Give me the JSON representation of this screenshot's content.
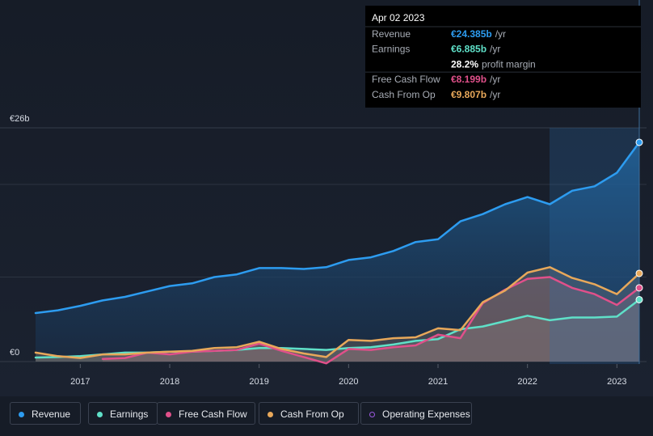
{
  "chart_data": {
    "type": "line",
    "xlim": [
      2016.5,
      2023.25
    ],
    "xticks": [
      2017,
      2018,
      2019,
      2020,
      2021,
      2022,
      2023
    ],
    "ylim": [
      0,
      26
    ],
    "yticks": [
      {
        "value": 0,
        "label": "€0"
      },
      {
        "value": 26,
        "label": "€26b"
      }
    ],
    "gridlines": [
      9.4,
      19.7
    ],
    "x": [
      2016.5,
      2016.75,
      2017.0,
      2017.25,
      2017.5,
      2017.75,
      2018.0,
      2018.25,
      2018.5,
      2018.75,
      2019.0,
      2019.25,
      2019.5,
      2019.75,
      2020.0,
      2020.25,
      2020.5,
      2020.75,
      2021.0,
      2021.25,
      2021.5,
      2021.75,
      2022.0,
      2022.25,
      2022.5,
      2022.75,
      2023.0,
      2023.25
    ],
    "series": [
      {
        "name": "Revenue",
        "color": "#2d9cf0",
        "values": [
          5.4,
          5.7,
          6.2,
          6.8,
          7.2,
          7.8,
          8.4,
          8.7,
          9.4,
          9.7,
          10.4,
          10.4,
          10.3,
          10.5,
          11.3,
          11.6,
          12.3,
          13.3,
          13.6,
          15.6,
          16.4,
          17.5,
          18.3,
          17.5,
          19.0,
          19.5,
          21.0,
          24.385
        ]
      },
      {
        "name": "Earnings",
        "color": "#5fe0c8",
        "values": [
          0.45,
          0.5,
          0.6,
          0.8,
          1.0,
          1.0,
          1.1,
          1.1,
          1.2,
          1.3,
          1.5,
          1.5,
          1.4,
          1.3,
          1.5,
          1.6,
          1.9,
          2.3,
          2.5,
          3.6,
          3.9,
          4.5,
          5.1,
          4.6,
          4.9,
          4.9,
          5.0,
          6.885
        ]
      },
      {
        "name": "Free Cash Flow",
        "color": "#e0508a",
        "values": [
          null,
          null,
          null,
          0.3,
          0.4,
          1.0,
          0.8,
          1.1,
          1.2,
          1.3,
          2.0,
          1.2,
          0.5,
          -0.2,
          1.4,
          1.3,
          1.6,
          1.8,
          3.0,
          2.6,
          6.5,
          8.0,
          9.2,
          9.4,
          8.2,
          7.5,
          6.3,
          8.199
        ]
      },
      {
        "name": "Cash From Op",
        "color": "#e8a85a",
        "values": [
          1.0,
          0.6,
          0.4,
          0.8,
          0.8,
          1.0,
          1.1,
          1.2,
          1.5,
          1.6,
          2.2,
          1.4,
          0.9,
          0.5,
          2.4,
          2.3,
          2.6,
          2.7,
          3.7,
          3.5,
          6.6,
          7.9,
          9.9,
          10.5,
          9.3,
          8.6,
          7.5,
          9.807
        ]
      },
      {
        "name": "Operating Expenses",
        "color": "#9b59e0",
        "hidden": true,
        "values": [
          null,
          null,
          null,
          null,
          null,
          null,
          null,
          null,
          null,
          null,
          null,
          null,
          null,
          null,
          null,
          null,
          null,
          null,
          null,
          null,
          null,
          null,
          null,
          null,
          null,
          null,
          null,
          null
        ]
      }
    ],
    "tooltip": {
      "date": "Apr 02 2023",
      "rows": [
        {
          "label": "Revenue",
          "value": "€24.385b",
          "unit": "/yr",
          "series": 0
        },
        {
          "label": "Earnings",
          "value": "€6.885b",
          "unit": "/yr",
          "series": 1
        },
        {
          "label": "",
          "value": "28.2%",
          "unit": "profit margin",
          "series": null
        },
        {
          "label": "Free Cash Flow",
          "value": "€8.199b",
          "unit": "/yr",
          "series": 2
        },
        {
          "label": "Cash From Op",
          "value": "€9.807b",
          "unit": "/yr",
          "series": 3
        }
      ]
    }
  }
}
